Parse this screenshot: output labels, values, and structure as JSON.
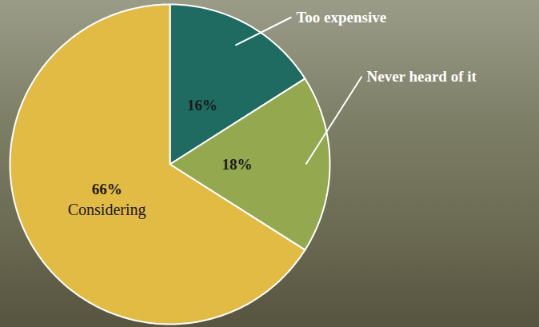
{
  "chart_data": {
    "type": "pie",
    "categories": [
      "Too expensive",
      "Never heard of it",
      "Considering"
    ],
    "values": [
      16,
      18,
      66
    ],
    "value_labels": [
      "16%",
      "18%",
      "66%"
    ],
    "colors": [
      "#1f6b62",
      "#93a84f",
      "#e2bb45"
    ],
    "data_labels": true
  }
}
